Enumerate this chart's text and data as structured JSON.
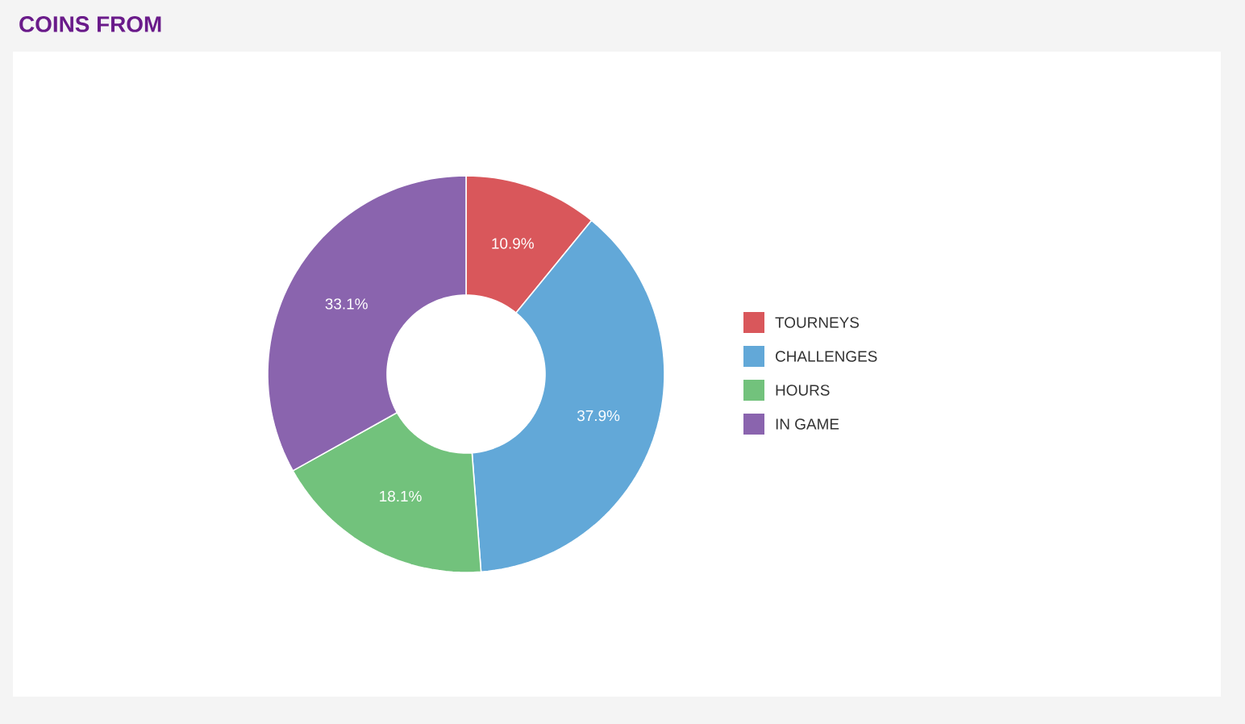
{
  "chart_data": {
    "type": "donut",
    "title": "COINS FROM",
    "categories": [
      "TOURNEYS",
      "CHALLENGES",
      "HOURS",
      "IN GAME"
    ],
    "values": [
      10.9,
      37.9,
      18.1,
      33.1
    ],
    "value_labels": [
      "10.9%",
      "37.9%",
      "18.1%",
      "33.1%"
    ],
    "colors": [
      "#d9575b",
      "#62a8d8",
      "#72c27c",
      "#8a64ae"
    ],
    "legend": "right"
  }
}
